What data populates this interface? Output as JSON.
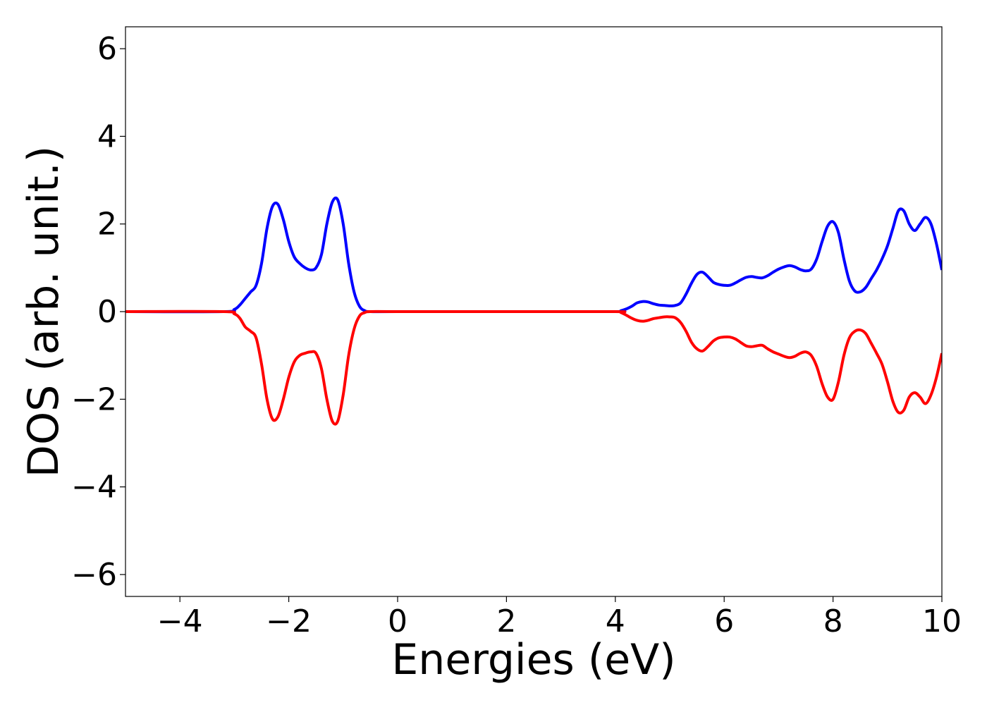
{
  "chart_data": {
    "type": "line",
    "title": "",
    "xlabel": "Energies (eV)",
    "ylabel": "DOS (arb. unit.)",
    "xlim": [
      -5,
      10
    ],
    "ylim": [
      -6.5,
      6.5
    ],
    "xticks": [
      -4,
      -2,
      0,
      2,
      4,
      6,
      8,
      10
    ],
    "yticks": [
      -6,
      -4,
      -2,
      0,
      2,
      4,
      6
    ],
    "xtick_labels": [
      "−4",
      "−2",
      "0",
      "2",
      "4",
      "6",
      "8",
      "10"
    ],
    "ytick_labels": [
      "−6",
      "−4",
      "−2",
      "0",
      "2",
      "4",
      "6"
    ],
    "grid": false,
    "legend": "none",
    "series": [
      {
        "color": "#0000ff",
        "x": [
          -5,
          -3.2,
          -3.0,
          -2.9,
          -2.8,
          -2.7,
          -2.6,
          -2.5,
          -2.4,
          -2.3,
          -2.2,
          -2.1,
          -2.0,
          -1.9,
          -1.8,
          -1.7,
          -1.6,
          -1.5,
          -1.4,
          -1.3,
          -1.2,
          -1.1,
          -1.0,
          -0.9,
          -0.8,
          -0.7,
          -0.6,
          -0.5,
          0,
          2,
          4.0,
          4.1,
          4.2,
          4.3,
          4.4,
          4.5,
          4.6,
          4.7,
          4.8,
          4.9,
          5.0,
          5.1,
          5.2,
          5.3,
          5.4,
          5.5,
          5.6,
          5.7,
          5.8,
          5.9,
          6.0,
          6.1,
          6.2,
          6.3,
          6.4,
          6.5,
          6.6,
          6.7,
          6.8,
          6.9,
          7.0,
          7.1,
          7.2,
          7.3,
          7.4,
          7.5,
          7.6,
          7.7,
          7.8,
          7.9,
          8.0,
          8.1,
          8.2,
          8.3,
          8.4,
          8.5,
          8.6,
          8.7,
          8.8,
          8.9,
          9.0,
          9.1,
          9.2,
          9.3,
          9.4,
          9.5,
          9.6,
          9.7,
          9.8,
          9.9,
          10.0
        ],
        "y": [
          0,
          0,
          0.05,
          0.15,
          0.3,
          0.45,
          0.6,
          1.1,
          1.9,
          2.4,
          2.45,
          2.1,
          1.6,
          1.25,
          1.1,
          1.0,
          0.95,
          1.0,
          1.3,
          2.0,
          2.5,
          2.55,
          2.0,
          1.1,
          0.45,
          0.12,
          0.02,
          0,
          0,
          0,
          0,
          0.02,
          0.06,
          0.12,
          0.2,
          0.23,
          0.22,
          0.18,
          0.15,
          0.14,
          0.13,
          0.14,
          0.2,
          0.4,
          0.65,
          0.85,
          0.9,
          0.8,
          0.67,
          0.62,
          0.6,
          0.6,
          0.65,
          0.72,
          0.78,
          0.8,
          0.78,
          0.77,
          0.82,
          0.9,
          0.97,
          1.02,
          1.05,
          1.02,
          0.96,
          0.93,
          0.97,
          1.2,
          1.6,
          1.95,
          2.05,
          1.8,
          1.2,
          0.7,
          0.47,
          0.45,
          0.55,
          0.75,
          0.95,
          1.2,
          1.5,
          1.9,
          2.3,
          2.3,
          2.0,
          1.85,
          2.0,
          2.15,
          2.0,
          1.55,
          0.95
        ]
      },
      {
        "color": "#ff0000",
        "x": [
          -5,
          -3.2,
          -3.0,
          -2.9,
          -2.8,
          -2.7,
          -2.6,
          -2.5,
          -2.4,
          -2.3,
          -2.2,
          -2.1,
          -2.0,
          -1.9,
          -1.8,
          -1.7,
          -1.6,
          -1.5,
          -1.4,
          -1.3,
          -1.2,
          -1.1,
          -1.0,
          -0.9,
          -0.8,
          -0.7,
          -0.6,
          -0.5,
          0,
          2,
          4.0,
          4.1,
          4.2,
          4.3,
          4.4,
          4.5,
          4.6,
          4.7,
          4.8,
          4.9,
          5.0,
          5.1,
          5.2,
          5.3,
          5.4,
          5.5,
          5.6,
          5.7,
          5.8,
          5.9,
          6.0,
          6.1,
          6.2,
          6.3,
          6.4,
          6.5,
          6.6,
          6.7,
          6.8,
          6.9,
          7.0,
          7.1,
          7.2,
          7.3,
          7.4,
          7.5,
          7.6,
          7.7,
          7.8,
          7.9,
          8.0,
          8.1,
          8.2,
          8.3,
          8.4,
          8.5,
          8.6,
          8.7,
          8.8,
          8.9,
          9.0,
          9.1,
          9.2,
          9.3,
          9.4,
          9.5,
          9.6,
          9.7,
          9.8,
          9.9,
          10.0
        ],
        "y": [
          0,
          0,
          -0.05,
          -0.15,
          -0.35,
          -0.45,
          -0.6,
          -1.2,
          -2.0,
          -2.45,
          -2.4,
          -2.0,
          -1.5,
          -1.15,
          -1.0,
          -0.95,
          -0.92,
          -0.95,
          -1.3,
          -2.0,
          -2.5,
          -2.5,
          -1.9,
          -1.0,
          -0.4,
          -0.1,
          -0.02,
          0,
          0,
          0,
          0,
          -0.02,
          -0.08,
          -0.15,
          -0.2,
          -0.22,
          -0.2,
          -0.16,
          -0.14,
          -0.12,
          -0.12,
          -0.14,
          -0.25,
          -0.45,
          -0.7,
          -0.85,
          -0.9,
          -0.8,
          -0.67,
          -0.6,
          -0.58,
          -0.58,
          -0.62,
          -0.7,
          -0.78,
          -0.8,
          -0.78,
          -0.77,
          -0.85,
          -0.92,
          -0.97,
          -1.02,
          -1.05,
          -1.02,
          -0.95,
          -0.92,
          -1.0,
          -1.25,
          -1.65,
          -1.95,
          -2.0,
          -1.6,
          -1.0,
          -0.6,
          -0.45,
          -0.42,
          -0.5,
          -0.72,
          -0.95,
          -1.2,
          -1.6,
          -2.05,
          -2.3,
          -2.25,
          -1.95,
          -1.85,
          -1.95,
          -2.1,
          -1.9,
          -1.5,
          -0.95
        ]
      }
    ]
  }
}
